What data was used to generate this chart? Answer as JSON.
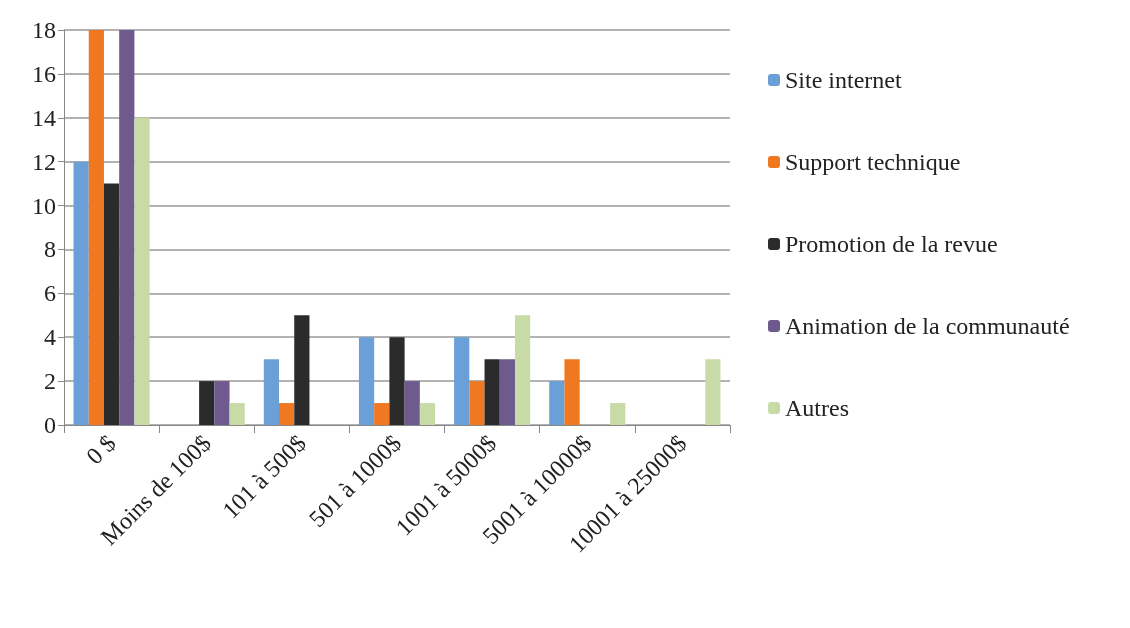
{
  "chart_data": {
    "type": "bar",
    "categories": [
      "0 $",
      "Moins de 100$",
      "101 à 500$",
      "501 à 1000$",
      "1001 à 5000$",
      "5001 à 10000$",
      "10001 à 25000$"
    ],
    "series": [
      {
        "name": "Site internet",
        "color": "#6a9fd8",
        "values": [
          12,
          0,
          3,
          4,
          4,
          2,
          0
        ]
      },
      {
        "name": "Support technique",
        "color": "#f07820",
        "values": [
          18,
          0,
          1,
          1,
          2,
          3,
          0
        ]
      },
      {
        "name": "Promotion de la revue",
        "color": "#2b2b2b",
        "values": [
          11,
          2,
          5,
          4,
          3,
          0,
          0
        ]
      },
      {
        "name": "Animation de la communauté",
        "color": "#6e5a8c",
        "values": [
          18,
          2,
          0,
          2,
          3,
          0,
          0
        ]
      },
      {
        "name": "Autres",
        "color": "#c8dba6",
        "values": [
          14,
          1,
          0,
          1,
          5,
          1,
          3
        ]
      }
    ],
    "ylim": [
      0,
      18
    ],
    "yticks": [
      0,
      2,
      4,
      6,
      8,
      10,
      12,
      14,
      16,
      18
    ],
    "grid": "y",
    "legend": "right"
  }
}
